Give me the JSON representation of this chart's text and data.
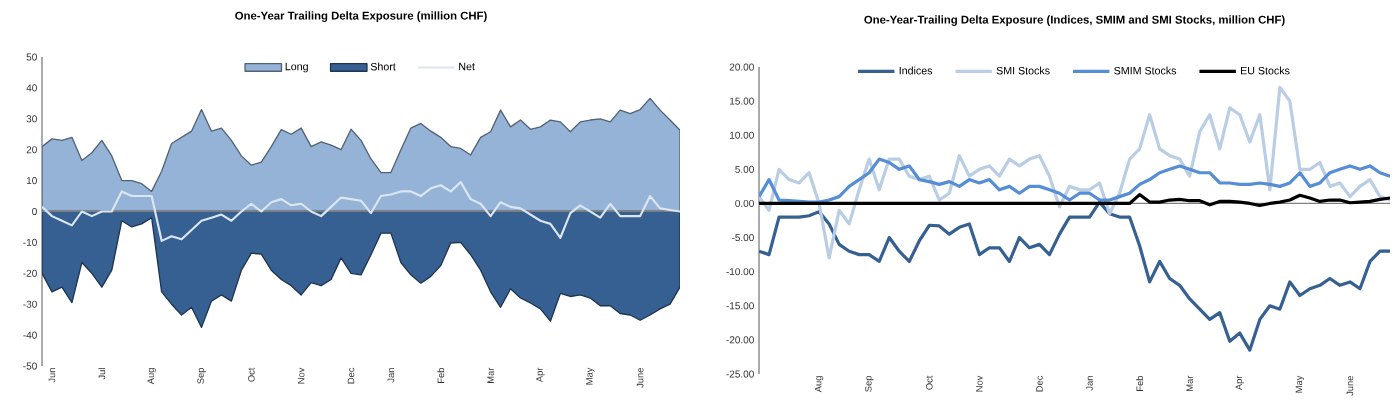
{
  "chart_data": [
    {
      "type": "area",
      "title": "One-Year Trailing Delta Exposure (million CHF)",
      "legend": "top",
      "ylim": [
        -50,
        50
      ],
      "yticks": [
        -50,
        -40,
        -30,
        -20,
        -10,
        0,
        10,
        20,
        30,
        40,
        50
      ],
      "categories": [
        null,
        "Jun",
        null,
        null,
        null,
        null,
        "Jul",
        null,
        null,
        null,
        null,
        "Aug",
        null,
        null,
        null,
        null,
        "Sep",
        null,
        null,
        null,
        null,
        "Oct",
        null,
        null,
        null,
        null,
        "Nov",
        null,
        null,
        null,
        null,
        "Dec",
        null,
        null,
        null,
        "Jan",
        null,
        null,
        null,
        null,
        "Feb",
        null,
        null,
        null,
        null,
        "Mar",
        null,
        null,
        null,
        null,
        "Apr",
        null,
        null,
        null,
        null,
        "May",
        null,
        null,
        null,
        null,
        "June",
        null,
        null,
        null,
        null
      ],
      "series": [
        {
          "name": "Long",
          "color": "#95b3d7",
          "values": [
            21,
            23.5,
            23,
            24,
            16.5,
            19,
            23,
            18,
            10,
            10,
            9,
            6.5,
            13,
            22,
            24,
            26,
            33,
            26,
            27,
            23,
            18,
            15,
            16,
            21,
            26.5,
            25,
            27,
            21,
            22.5,
            21.5,
            20,
            26.6,
            23,
            17,
            12.6,
            12.6,
            20,
            27,
            28.5,
            26,
            24,
            21,
            20.4,
            18.3,
            24,
            25.8,
            32.8,
            27.4,
            29.6,
            26.6,
            27.4,
            29.6,
            29,
            25.8,
            29,
            29.6,
            30,
            29,
            32.8,
            31.7,
            33,
            36.6,
            32.8,
            29.6,
            26.3
          ]
        },
        {
          "name": "Short",
          "color": "#366092",
          "values": [
            -20,
            -26,
            -24.5,
            -29.5,
            -16.5,
            -20,
            -24.5,
            -19,
            -3,
            -5,
            -4,
            -2,
            -26,
            -30,
            -33.5,
            -31,
            -37.5,
            -29,
            -27,
            -29,
            -19,
            -13.5,
            -13.8,
            -19,
            -22,
            -24,
            -27,
            -23,
            -24,
            -22,
            -15,
            -20,
            -20.5,
            -14,
            -7,
            -7,
            -16.5,
            -20.5,
            -23.2,
            -21,
            -17.5,
            -10.2,
            -10,
            -14,
            -19,
            -26,
            -31,
            -25,
            -28,
            -29.6,
            -31.5,
            -35.5,
            -26.5,
            -27.5,
            -27,
            -28,
            -30.5,
            -30.5,
            -33,
            -33.5,
            -35.2,
            -33.5,
            -31.5,
            -30,
            -24.5
          ]
        },
        {
          "name": "Net",
          "type": "line",
          "color": "#dce6f2",
          "values": [
            1.5,
            -1.5,
            -3,
            -4.5,
            0,
            -1.5,
            0,
            0,
            6.5,
            5,
            5,
            5,
            -9.5,
            -8,
            -9,
            -6,
            -3,
            -2,
            -1,
            -3,
            0,
            2.5,
            0,
            3,
            4,
            2,
            2.5,
            0,
            -1.5,
            1.5,
            4.5,
            4,
            3.5,
            -0.5,
            5,
            5.5,
            6.5,
            6.5,
            5,
            7.5,
            8.5,
            6.5,
            9.5,
            4,
            2.5,
            -1.5,
            3,
            1.5,
            1,
            -1,
            -3,
            -4,
            -8.5,
            -0.5,
            2,
            0,
            -2,
            2.5,
            -1.5,
            -1.5,
            -1.5,
            5,
            1,
            0.5,
            0
          ]
        }
      ]
    },
    {
      "type": "line",
      "title": "One-Year-Trailing Delta Exposure (Indices, SMIM and SMI Stocks, million CHF)",
      "legend": "top",
      "ylim": [
        -25,
        20
      ],
      "yticks": [
        {
          "value": -25,
          "label": "-25.00"
        },
        {
          "value": -20,
          "label": "-20.00"
        },
        {
          "value": -15,
          "label": "-15.00"
        },
        {
          "value": -10,
          "label": "-10.00"
        },
        {
          "value": -5,
          "label": "-5.00"
        },
        {
          "value": 0,
          "label": "0.00"
        },
        {
          "value": 5,
          "label": "5.00"
        },
        {
          "value": 10,
          "label": "10.00"
        },
        {
          "value": 15,
          "label": "15.00"
        },
        {
          "value": 20,
          "label": "20.00"
        }
      ],
      "categories": [
        null,
        null,
        null,
        null,
        null,
        null,
        "Aug",
        null,
        null,
        null,
        null,
        "Sep",
        null,
        null,
        null,
        null,
        null,
        "Oct",
        null,
        null,
        null,
        null,
        "Nov",
        null,
        null,
        null,
        null,
        null,
        "Dec",
        null,
        null,
        null,
        null,
        "Jan",
        null,
        null,
        null,
        null,
        "Feb",
        null,
        null,
        null,
        null,
        "Mar",
        null,
        null,
        null,
        null,
        "Apr",
        null,
        null,
        null,
        null,
        null,
        "May",
        null,
        null,
        null,
        null,
        "June",
        null,
        null,
        null,
        null
      ],
      "series": [
        {
          "name": "Indices",
          "color": "#366092",
          "values": [
            -7,
            -7.5,
            -2,
            -2,
            -2,
            -1.8,
            -1.2,
            -3,
            -6,
            -7,
            -7.5,
            -7.5,
            -8.5,
            -5,
            -7,
            -8.5,
            -5.5,
            -3.2,
            -3.3,
            -4.5,
            -3.5,
            -3,
            -7.5,
            -6.5,
            -6.5,
            -8.5,
            -5,
            -6.5,
            -6,
            -7.5,
            -4.5,
            -2,
            -2,
            -2,
            0.2,
            -1.5,
            -2,
            -2,
            -6.2,
            -11.5,
            -8.5,
            -11,
            -12,
            -14,
            -15.5,
            -17,
            -16,
            -20.2,
            -19,
            -21.5,
            -17,
            -15,
            -15.5,
            -11.5,
            -13.5,
            -12.5,
            -12,
            -11,
            -12,
            -11.5,
            -12.5,
            -8.5,
            -7,
            -7
          ]
        },
        {
          "name": "SMI Stocks",
          "color": "#b9cde5",
          "values": [
            1,
            -1,
            5,
            3.5,
            3,
            4.5,
            0,
            -8,
            -1,
            -3,
            2,
            6.5,
            2,
            6.5,
            6.5,
            4,
            3.5,
            4,
            0.5,
            1.5,
            7,
            4,
            5,
            5.5,
            4,
            6.5,
            5.5,
            6.5,
            7,
            4,
            -0.5,
            2.5,
            2,
            2,
            3,
            -1.5,
            1.5,
            6.5,
            8,
            13,
            8,
            7,
            6.5,
            4,
            10.5,
            13,
            8,
            14,
            13,
            9,
            13,
            2,
            17,
            15,
            5,
            5,
            6,
            2.5,
            3,
            1,
            2.5,
            3.5,
            1,
            0.5
          ]
        },
        {
          "name": "SMIM Stocks",
          "color": "#558ed5",
          "values": [
            1,
            3.5,
            0.5,
            0.4,
            0.3,
            0.2,
            0.2,
            0.5,
            1,
            2.5,
            3.5,
            4.5,
            6.5,
            6,
            5,
            5.5,
            3.5,
            3.2,
            2.8,
            3.2,
            2.5,
            3.5,
            3,
            3.5,
            2,
            2.5,
            1.5,
            2.5,
            2.5,
            2,
            1.5,
            0.5,
            1.5,
            1.5,
            0.5,
            0.5,
            1,
            1.5,
            2.8,
            3.5,
            4.5,
            5,
            5.5,
            5,
            4.5,
            4.5,
            3,
            3,
            2.8,
            2.8,
            3,
            2.8,
            2.5,
            3,
            4.5,
            2.5,
            3,
            4.5,
            5,
            5.5,
            5,
            5.5,
            4.5,
            4
          ]
        },
        {
          "name": "EU Stocks",
          "color": "#000000",
          "values": [
            0,
            0,
            0,
            0,
            0,
            0,
            0,
            0,
            0,
            0,
            0,
            0,
            0,
            0,
            0,
            0,
            0,
            0,
            0,
            0,
            0,
            0,
            0,
            0,
            0,
            0,
            0,
            0,
            0,
            0,
            0,
            0,
            0,
            0,
            0,
            0,
            0,
            0,
            1.3,
            0.2,
            0.2,
            0.5,
            0.6,
            0.4,
            0.4,
            -0.2,
            0.3,
            0.3,
            0.2,
            0,
            -0.3,
            0,
            0.2,
            0.5,
            1.2,
            0.8,
            0.3,
            0.5,
            0.5,
            0.1,
            0.2,
            0.3,
            0.6,
            0.8
          ]
        }
      ]
    }
  ]
}
